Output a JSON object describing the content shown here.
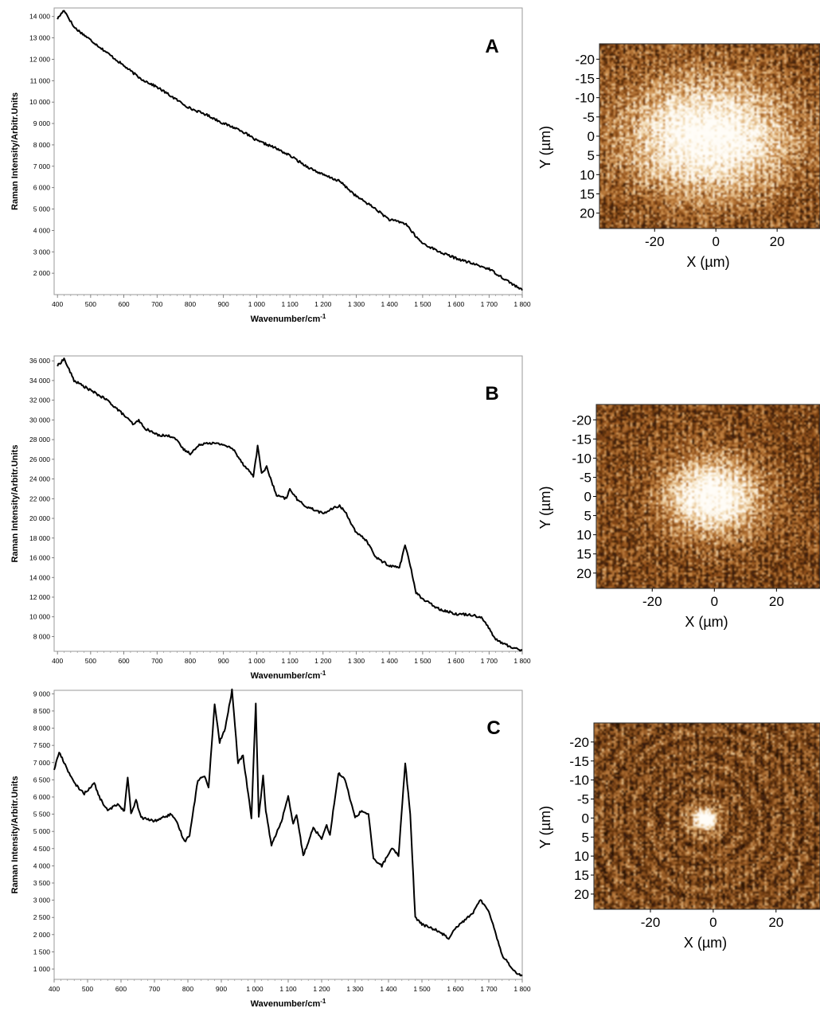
{
  "chart_data": [
    {
      "type": "line",
      "panel_label": "A",
      "xlabel": "Wavenumber/cm-1",
      "ylabel": "Raman Intensity/Arbitr.Units",
      "xlim": [
        390,
        1800
      ],
      "ylim": [
        1000,
        14400
      ],
      "xticks": [
        400,
        500,
        600,
        700,
        800,
        900,
        1000,
        1100,
        1200,
        1300,
        1400,
        1500,
        1600,
        1700,
        1800
      ],
      "xtick_labels": [
        "400",
        "500",
        "600",
        "700",
        "800",
        "900",
        "1 000",
        "1 100",
        "1 200",
        "1 300",
        "1 400",
        "1 500",
        "1 600",
        "1 700",
        "1 800"
      ],
      "yticks": [
        2000,
        3000,
        4000,
        5000,
        6000,
        7000,
        8000,
        9000,
        10000,
        11000,
        12000,
        13000,
        14000
      ],
      "ytick_labels": [
        "2 000",
        "3 000",
        "4 000",
        "5 000",
        "6 000",
        "7 000",
        "8 000",
        "9 000",
        "10 000",
        "11 000",
        "12 000",
        "13 000",
        "14 000"
      ],
      "x": [
        400,
        420,
        450,
        500,
        550,
        600,
        650,
        700,
        750,
        800,
        850,
        900,
        950,
        1000,
        1050,
        1100,
        1150,
        1200,
        1250,
        1300,
        1350,
        1400,
        1430,
        1450,
        1480,
        1500,
        1550,
        1600,
        1650,
        1700,
        1750,
        1800
      ],
      "y": [
        13900,
        14300,
        13500,
        12900,
        12300,
        11700,
        11100,
        10700,
        10200,
        9700,
        9400,
        9000,
        8700,
        8200,
        7900,
        7500,
        7000,
        6600,
        6300,
        5600,
        5100,
        4500,
        4400,
        4300,
        3700,
        3400,
        3000,
        2700,
        2450,
        2200,
        1700,
        1200
      ]
    },
    {
      "type": "line",
      "panel_label": "B",
      "xlabel": "Wavenumber/cm-1",
      "ylabel": "Raman Intensity/Arbitr.Units",
      "xlim": [
        390,
        1800
      ],
      "ylim": [
        6500,
        36500
      ],
      "xticks": [
        400,
        500,
        600,
        700,
        800,
        900,
        1000,
        1100,
        1200,
        1300,
        1400,
        1500,
        1600,
        1700,
        1800
      ],
      "xtick_labels": [
        "400",
        "500",
        "600",
        "700",
        "800",
        "900",
        "1 000",
        "1 100",
        "1 200",
        "1 300",
        "1 400",
        "1 500",
        "1 600",
        "1 700",
        "1 800"
      ],
      "yticks": [
        8000,
        10000,
        12000,
        14000,
        16000,
        18000,
        20000,
        22000,
        24000,
        26000,
        28000,
        30000,
        32000,
        34000,
        36000
      ],
      "ytick_labels": [
        "8 000",
        "10 000",
        "12 000",
        "14 000",
        "16 000",
        "18 000",
        "20 000",
        "22 000",
        "24 000",
        "26 000",
        "28 000",
        "30 000",
        "32 000",
        "34 000",
        "36 000"
      ],
      "x": [
        400,
        420,
        450,
        500,
        550,
        600,
        630,
        645,
        660,
        700,
        750,
        780,
        800,
        830,
        850,
        900,
        930,
        960,
        990,
        1003,
        1015,
        1030,
        1060,
        1090,
        1100,
        1125,
        1150,
        1200,
        1230,
        1250,
        1270,
        1300,
        1330,
        1360,
        1400,
        1430,
        1447,
        1460,
        1480,
        1500,
        1550,
        1600,
        1650,
        1680,
        1720,
        1760,
        1800
      ],
      "y": [
        35500,
        36200,
        34000,
        33000,
        32000,
        30500,
        29500,
        30000,
        29200,
        28500,
        28300,
        27000,
        26600,
        27500,
        27700,
        27500,
        27000,
        25500,
        24300,
        27300,
        24600,
        25200,
        22300,
        22000,
        23000,
        21800,
        21200,
        20500,
        21000,
        21300,
        20500,
        18500,
        17800,
        16000,
        15200,
        15000,
        17300,
        15600,
        12500,
        11800,
        10800,
        10300,
        10200,
        9900,
        7700,
        7000,
        6600
      ]
    },
    {
      "type": "line",
      "panel_label": "C",
      "xlabel": "Wavenumber/cm-1",
      "ylabel": "Raman Intensity/Arbitr.Units",
      "xlim": [
        400,
        1800
      ],
      "ylim": [
        700,
        9100
      ],
      "xticks": [
        400,
        500,
        600,
        700,
        800,
        900,
        1000,
        1100,
        1200,
        1300,
        1400,
        1500,
        1600,
        1700,
        1800
      ],
      "xtick_labels": [
        "400",
        "500",
        "600",
        "700",
        "800",
        "900",
        "1 000",
        "1 100",
        "1 200",
        "1 300",
        "1 400",
        "1 500",
        "1 600",
        "1 700",
        "1 800"
      ],
      "yticks": [
        1000,
        1500,
        2000,
        2500,
        3000,
        3500,
        4000,
        4500,
        5000,
        5500,
        6000,
        6500,
        7000,
        7500,
        8000,
        8500,
        9000
      ],
      "ytick_labels": [
        "1 000",
        "1 500",
        "2 000",
        "2 500",
        "3 000",
        "3 500",
        "4 000",
        "4 500",
        "5 000",
        "5 500",
        "6 000",
        "6 500",
        "7 000",
        "7 500",
        "8 000",
        "8 500",
        "9 000"
      ],
      "x": [
        400,
        415,
        430,
        460,
        490,
        520,
        535,
        560,
        590,
        610,
        620,
        630,
        645,
        660,
        700,
        750,
        770,
        790,
        805,
        830,
        850,
        862,
        880,
        895,
        912,
        932,
        950,
        965,
        990,
        1003,
        1012,
        1025,
        1033,
        1050,
        1080,
        1100,
        1115,
        1125,
        1145,
        1175,
        1200,
        1215,
        1225,
        1250,
        1270,
        1300,
        1320,
        1340,
        1355,
        1380,
        1410,
        1430,
        1450,
        1465,
        1480,
        1500,
        1550,
        1580,
        1600,
        1625,
        1650,
        1675,
        1700,
        1740,
        1780,
        1800
      ],
      "y": [
        6800,
        7300,
        7000,
        6400,
        6100,
        6400,
        6000,
        5600,
        5800,
        5600,
        6600,
        5500,
        5900,
        5400,
        5300,
        5500,
        5200,
        4700,
        4900,
        6500,
        6600,
        6300,
        8700,
        7600,
        8000,
        9100,
        7000,
        7200,
        5400,
        8700,
        5400,
        6600,
        5600,
        4600,
        5300,
        6000,
        5200,
        5500,
        4300,
        5100,
        4800,
        5200,
        4900,
        6700,
        6500,
        5400,
        5600,
        5500,
        4200,
        4000,
        4500,
        4300,
        7000,
        5500,
        2500,
        2300,
        2100,
        1900,
        2200,
        2400,
        2600,
        3000,
        2700,
        1400,
        900,
        800
      ]
    }
  ],
  "maps": [
    {
      "panel_label": "A",
      "xlabel": "X (µm)",
      "ylabel": "Y (µm)",
      "yticks": [
        -20,
        -15,
        -10,
        -5,
        0,
        5,
        10,
        15,
        20
      ],
      "ytick_labels": [
        "-20",
        "-15",
        "-10",
        "-5",
        "0",
        "5",
        "10",
        "15",
        "20"
      ],
      "xticks": [
        -20,
        0,
        20
      ],
      "xtick_labels": [
        "-20",
        "0",
        "20"
      ],
      "xlim": [
        -38,
        34
      ],
      "ylim": [
        -24,
        24
      ],
      "bright_center": [
        -3,
        0
      ],
      "bright_radius": [
        25,
        14
      ],
      "colormap": [
        "#3b1d08",
        "#8a4a16",
        "#c98a48",
        "#f3dcb5",
        "#fffdf8"
      ]
    },
    {
      "panel_label": "B",
      "xlabel": "X (µm)",
      "ylabel": "Y (µm)",
      "yticks": [
        -20,
        -15,
        -10,
        -5,
        0,
        5,
        10,
        15,
        20
      ],
      "ytick_labels": [
        "-20",
        "-15",
        "-10",
        "-5",
        "0",
        "5",
        "10",
        "15",
        "20"
      ],
      "xticks": [
        -20,
        0,
        20
      ],
      "xtick_labels": [
        "-20",
        "0",
        "20"
      ],
      "xlim": [
        -38,
        34
      ],
      "ylim": [
        -24,
        24
      ],
      "bright_center": [
        -1,
        0
      ],
      "bright_radius": [
        14,
        9
      ],
      "colormap": [
        "#3b1d08",
        "#8a4a16",
        "#c98a48",
        "#f3dcb5",
        "#fffdf8"
      ]
    },
    {
      "panel_label": "C",
      "xlabel": "X (µm)",
      "ylabel": "Y (µm)",
      "yticks": [
        -20,
        -15,
        -10,
        -5,
        0,
        5,
        10,
        15,
        20
      ],
      "ytick_labels": [
        "-20",
        "-15",
        "-10",
        "-5",
        "0",
        "5",
        "10",
        "15",
        "20"
      ],
      "xticks": [
        -20,
        0,
        20
      ],
      "xtick_labels": [
        "-20",
        "0",
        "20"
      ],
      "xlim": [
        -38,
        34
      ],
      "ylim": [
        -25,
        24
      ],
      "bright_center": [
        -3,
        0
      ],
      "bright_radius": [
        4,
        3
      ],
      "colormap": [
        "#2a1405",
        "#6e3a10",
        "#b07034",
        "#e9c48e",
        "#fffdf8"
      ]
    }
  ]
}
